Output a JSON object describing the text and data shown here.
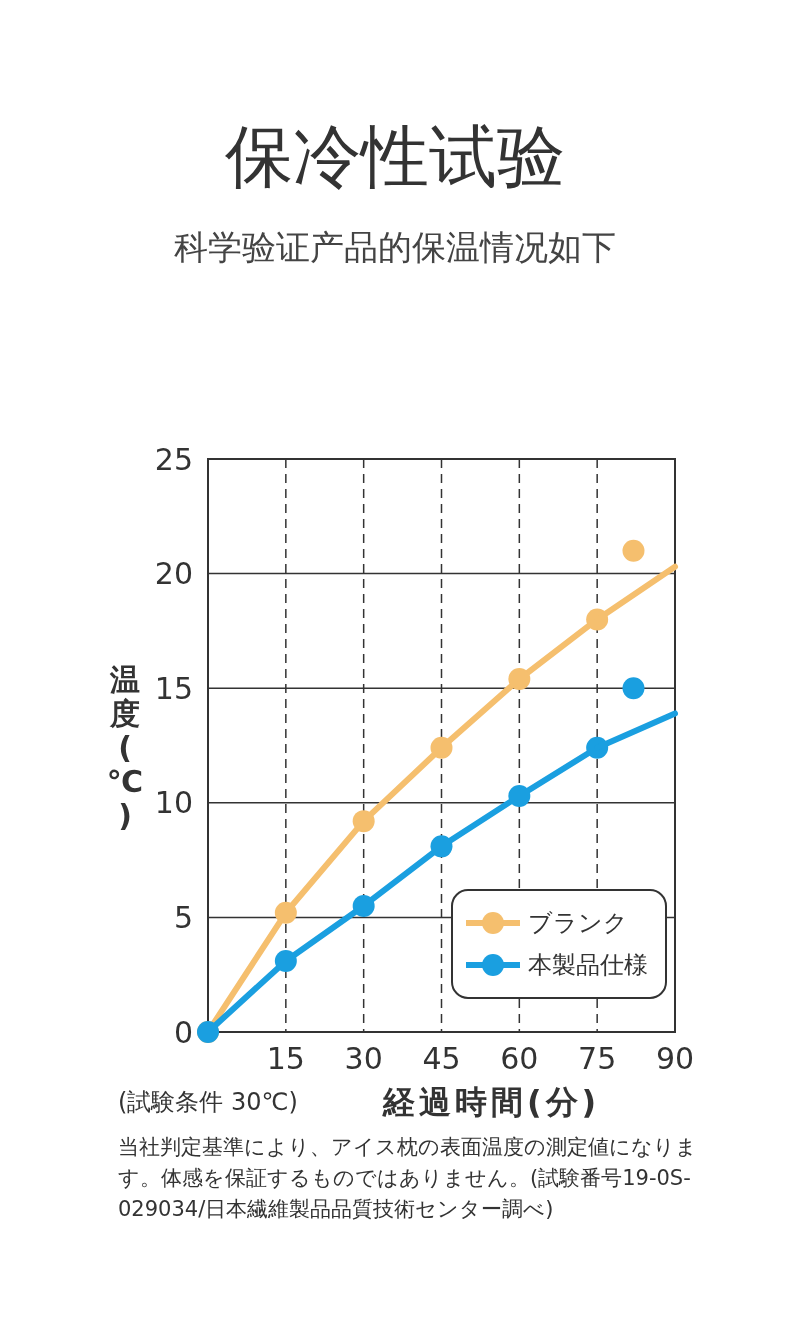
{
  "chart_data": {
    "type": "line",
    "title": "保冷性试验",
    "subtitle": "科学验证产品的保温情况如下",
    "xlabel": "経過時間(分)",
    "ylabel": "温度(℃)",
    "annotations": [
      "(試験条件 30℃)",
      "当社判定基準により、アイス枕の表面温度の測定値になります。体感を保証するものではありません。(試験番号19-0S-029034/日本繊維製品品質技術センター調べ)"
    ],
    "xlim": [
      0,
      90
    ],
    "ylim": [
      0,
      25
    ],
    "xticks": [
      15,
      30,
      45,
      60,
      75,
      90
    ],
    "yticks": [
      0,
      5,
      10,
      15,
      20,
      25
    ],
    "grid": true,
    "legend": "bottom right",
    "marker": "circle",
    "line_style": "solid",
    "series": [
      {
        "name": "ブランク",
        "color": "#f5bf6e",
        "x": [
          0,
          15,
          30,
          45,
          60,
          75
        ],
        "values": [
          0,
          5.2,
          9.2,
          12.4,
          15.4,
          18.0
        ]
      },
      {
        "name": "本製品仕様",
        "color": "#1a9fe0",
        "x": [
          0,
          15,
          30,
          45,
          60,
          75
        ],
        "values": [
          0,
          3.1,
          5.5,
          8.1,
          10.3,
          12.4
        ]
      },
      {
        "type": "line",
        "marker": "none",
        "color": "#f5bf6e",
        "x": [
          75,
          90
        ],
        "values": [
          18.0,
          20.3
        ]
      },
      {
        "type": "line",
        "marker": "none",
        "color": "#1a9fe0",
        "x": [
          75,
          90
        ],
        "values": [
          12.4,
          13.9
        ]
      },
      {
        "type": "scatter",
        "color": "#f5bf6e",
        "x": [
          82
        ],
        "values": [
          21.0
        ]
      },
      {
        "type": "scatter",
        "color": "#1a9fe0",
        "x": [
          82
        ],
        "values": [
          15.0
        ]
      }
    ]
  }
}
